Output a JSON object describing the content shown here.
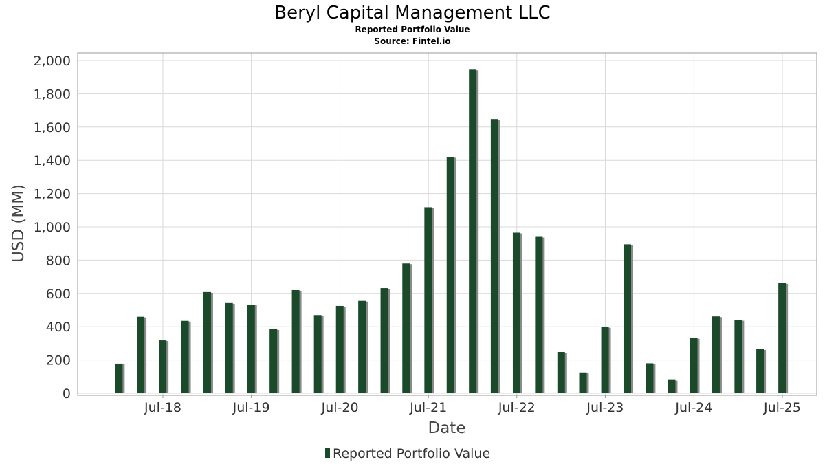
{
  "chart_data": {
    "type": "bar",
    "title": "Beryl Capital Management LLC",
    "subtitle_lines": [
      "Reported Portfolio Value",
      "Source: Fintel.io"
    ],
    "xlabel": "Date",
    "ylabel": "USD (MM)",
    "ylim": [
      0,
      2000
    ],
    "y_ticks": [
      "0",
      "200",
      "400",
      "600",
      "800",
      "1,000",
      "1,200",
      "1,400",
      "1,600",
      "1,800",
      "2,000"
    ],
    "x_ticks": [
      "Jul-18",
      "Jul-19",
      "Jul-20",
      "Jul-21",
      "Jul-22",
      "Jul-23",
      "Jul-24",
      "Jul-25"
    ],
    "grid": true,
    "legend_position": "bottom",
    "colors": {
      "bar": "#1a4a2a",
      "bar_shadow": "#8a8a8a",
      "grid": "#d9d9d9",
      "frame": "#999999"
    },
    "series": [
      {
        "name": "Reported Portfolio Value",
        "dates": [
          "2017-12-31",
          "2018-03-31",
          "2018-06-30",
          "2018-09-30",
          "2018-12-31",
          "2019-03-31",
          "2019-06-30",
          "2019-09-30",
          "2019-12-31",
          "2020-03-31",
          "2020-06-30",
          "2020-09-30",
          "2020-12-31",
          "2021-03-31",
          "2021-06-30",
          "2021-09-30",
          "2021-12-31",
          "2022-03-31",
          "2022-06-30",
          "2022-09-30",
          "2022-12-31",
          "2023-03-31",
          "2023-06-30",
          "2023-09-30",
          "2023-12-31",
          "2024-03-31",
          "2024-06-30",
          "2024-09-30",
          "2024-12-31",
          "2025-03-31",
          "2025-06-30"
        ],
        "values": [
          178,
          460,
          318,
          435,
          608,
          542,
          533,
          385,
          620,
          470,
          525,
          555,
          632,
          780,
          1118,
          1420,
          1945,
          1648,
          965,
          940,
          248,
          125,
          398,
          895,
          180,
          80,
          332,
          462,
          440,
          265,
          662
        ]
      }
    ]
  }
}
